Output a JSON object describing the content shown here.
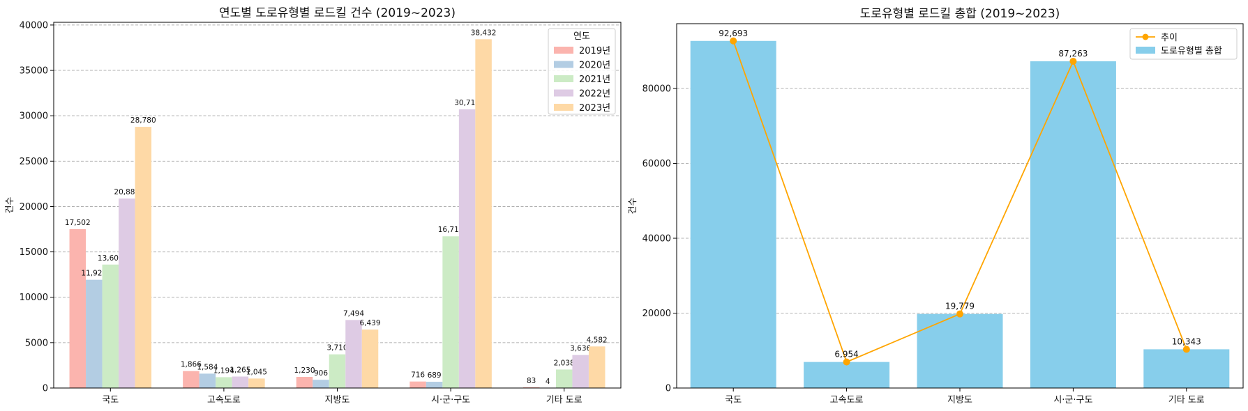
{
  "chart_data": [
    {
      "type": "bar",
      "title": "연도별 도로유형별 로드킬 건수 (2019~2023)",
      "xlabel": "",
      "ylabel": "건수",
      "categories": [
        "국도",
        "고속도로",
        "지방도",
        "시·군·구도",
        "기타 도로"
      ],
      "series": [
        {
          "name": "2019년",
          "color": "#fbb4ae",
          "values": [
            17502,
            1866,
            1230,
            716,
            83
          ]
        },
        {
          "name": "2020년",
          "color": "#b3cde3",
          "values": [
            11924,
            1584,
            906,
            689,
            4
          ]
        },
        {
          "name": "2021년",
          "color": "#ccebc5",
          "values": [
            13604,
            1194,
            3710,
            16715,
            2038
          ]
        },
        {
          "name": "2022년",
          "color": "#decbe4",
          "values": [
            20883,
            1265,
            7494,
            30711,
            3636
          ]
        },
        {
          "name": "2023년",
          "color": "#fed9a6",
          "values": [
            28780,
            1045,
            6439,
            38432,
            4582
          ]
        }
      ],
      "data_labels": [
        [
          "17,502",
          "1,866",
          "1,230",
          "716",
          "83"
        ],
        [
          "11,924",
          "1,584",
          "906",
          "689",
          "4"
        ],
        [
          "13,604",
          "1,194",
          "3,710",
          "16,715",
          "2,038"
        ],
        [
          "20,883",
          "1,265",
          "7,494",
          "30,711",
          "3,636"
        ],
        [
          "28,780",
          "1,045",
          "6,439",
          "38,432",
          "4,582"
        ]
      ],
      "ylim": [
        0,
        40300
      ],
      "yticks": [
        0,
        5000,
        10000,
        15000,
        20000,
        25000,
        30000,
        35000,
        40000
      ],
      "grid": "y-dashed",
      "legend": {
        "title": "연도",
        "placement": "top-right"
      }
    },
    {
      "type": "bar",
      "title": "도로유형별 로드킬 총합 (2019~2023)",
      "xlabel": "",
      "ylabel": "건수",
      "categories": [
        "국도",
        "고속도로",
        "지방도",
        "시·군·구도",
        "기타 도로"
      ],
      "series": [
        {
          "name": "도로유형별 총합",
          "type": "bar",
          "color": "#87ceeb",
          "values": [
            92693,
            6954,
            19779,
            87263,
            10343
          ]
        },
        {
          "name": "추이",
          "type": "line",
          "color": "#ffa500",
          "values": [
            92693,
            6954,
            19779,
            87263,
            10343
          ]
        }
      ],
      "data_labels": [
        "92,693",
        "6,954",
        "19,779",
        "87,263",
        "10,343"
      ],
      "ylim": [
        0,
        97300
      ],
      "yticks": [
        0,
        20000,
        40000,
        60000,
        80000
      ],
      "grid": "y-dashed",
      "legend": {
        "placement": "top-right"
      }
    }
  ]
}
